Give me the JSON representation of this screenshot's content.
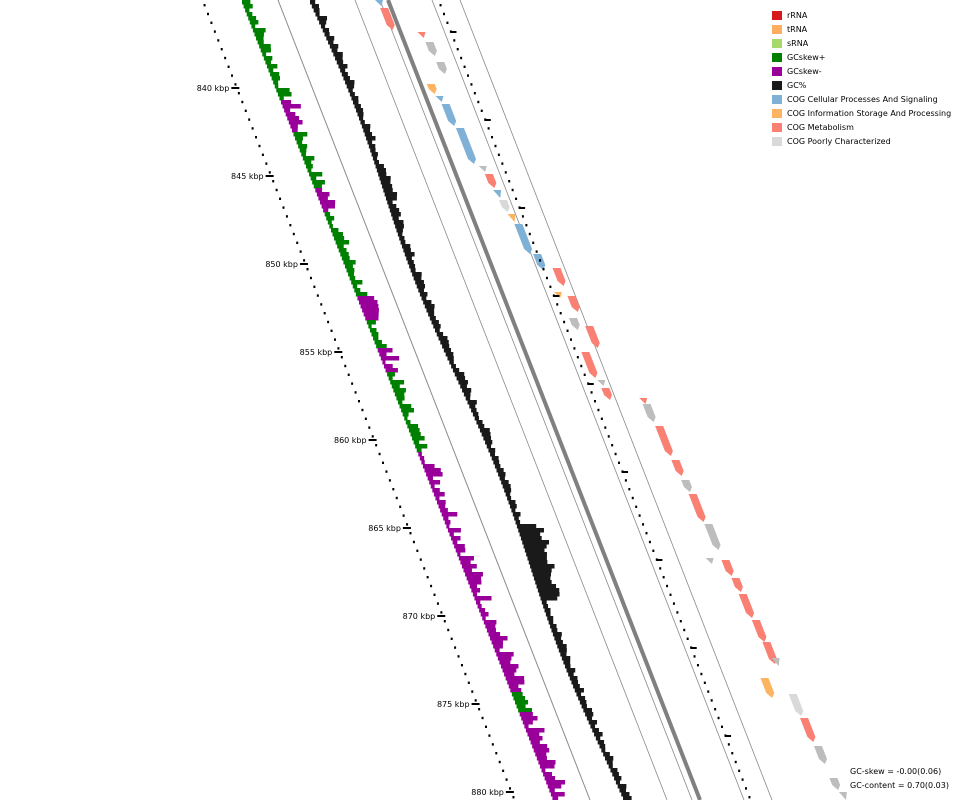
{
  "legend": {
    "items": [
      {
        "label": "rRNA",
        "color": "#d7191c"
      },
      {
        "label": "tRNA",
        "color": "#fdae61"
      },
      {
        "label": "sRNA",
        "color": "#a6d96a"
      },
      {
        "label": "GCskew+",
        "color": "#008000"
      },
      {
        "label": "GCskew-",
        "color": "#990099"
      },
      {
        "label": "GC%",
        "color": "#1a1a1a"
      },
      {
        "label": "COG Cellular Processes And Signaling",
        "color": "#7fb0d5"
      },
      {
        "label": "COG Information Storage And Processing",
        "color": "#fdb462"
      },
      {
        "label": "COG Metabolism",
        "color": "#f98072"
      },
      {
        "label": "COG Poorly Characterized",
        "color": "#d9d9d9"
      }
    ]
  },
  "ticks": {
    "labels": [
      "840 kbp",
      "845 kbp",
      "850 kbp",
      "855 kbp",
      "860 kbp",
      "865 kbp",
      "870 kbp",
      "875 kbp",
      "880 kbp"
    ]
  },
  "stats": {
    "gc_skew": "GC-skew = -0.00(0.06)",
    "gc_content": "GC-content = 0.70(0.03)"
  },
  "colors": {
    "skew_pos": "#008000",
    "skew_neg": "#990099",
    "gc": "#1a1a1a",
    "backbone": "#808080",
    "cellular": "#7fb0d5",
    "info": "#fdb462",
    "metabolism": "#f98072",
    "poorly": "#d9d9d9",
    "unassigned": "#bdbdbd"
  }
}
